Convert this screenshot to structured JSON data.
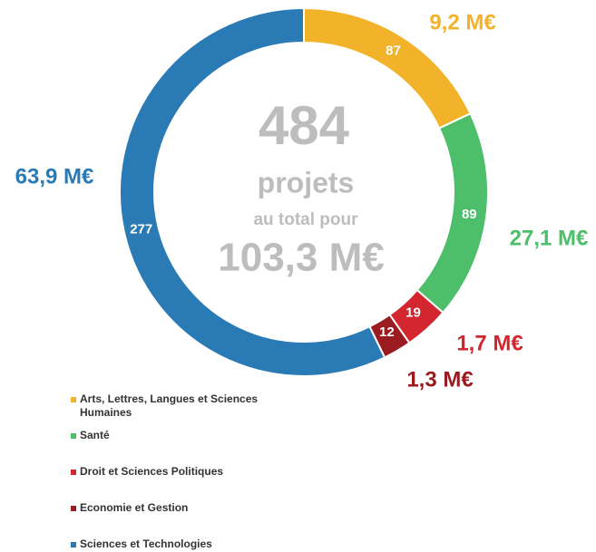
{
  "chart_data": {
    "type": "donut",
    "categories": [
      "Arts, Lettres, Langues et Sciences Humaines",
      "Santé",
      "Droit et Sciences Politiques",
      "Economie et Gestion",
      "Sciences et Technologies"
    ],
    "values": [
      87,
      89,
      19,
      12,
      277
    ],
    "colors": [
      "#f2b22a",
      "#4dbf6b",
      "#d4262e",
      "#9b1c20",
      "#2a7ab5"
    ],
    "amount_labels": [
      "9,2 M€",
      "27,1 M€",
      "1,7 M€",
      "1,3 M€",
      "63,9 M€"
    ],
    "center": {
      "total": "484",
      "unit": "projets",
      "text": "au total pour",
      "amount": "103,3 M€"
    },
    "legend": true
  }
}
